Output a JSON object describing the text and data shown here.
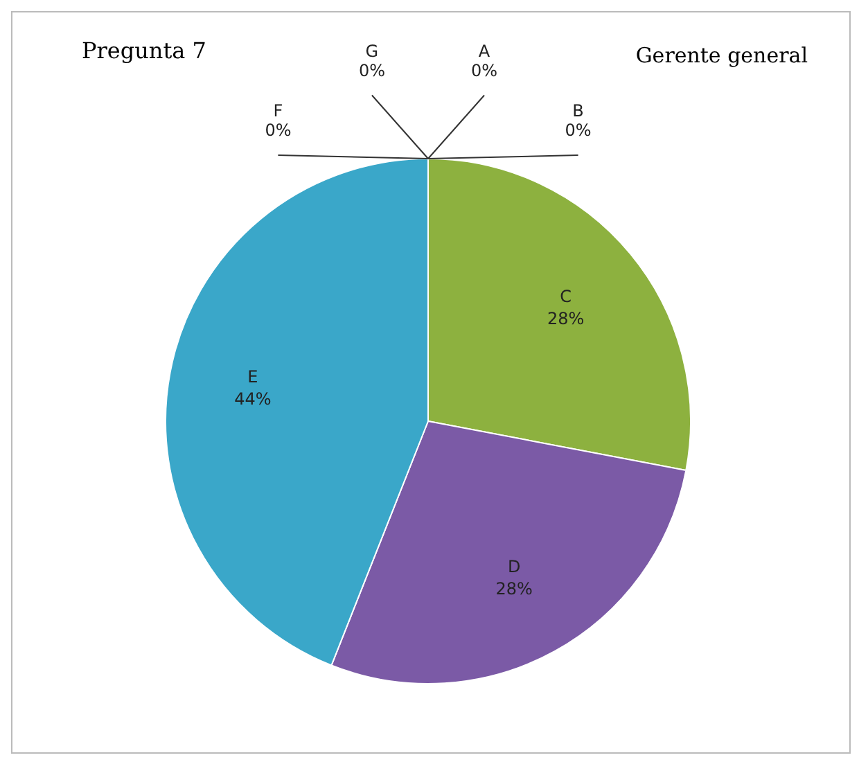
{
  "chart_data": {
    "type": "pie",
    "title": "Pregunta 7",
    "subtitle": "Gerente general",
    "categories": [
      "A",
      "B",
      "C",
      "D",
      "E",
      "F",
      "G"
    ],
    "values": [
      0,
      0,
      28,
      28,
      44,
      0,
      0
    ],
    "value_labels": [
      "0%",
      "0%",
      "28%",
      "28%",
      "44%",
      "0%",
      "0%"
    ],
    "colors": [
      "#4f81bd",
      "#c0504d",
      "#8db13f",
      "#7b5aa6",
      "#3aa7c9",
      "#f79646",
      "#2c4d75"
    ],
    "legend": false
  }
}
